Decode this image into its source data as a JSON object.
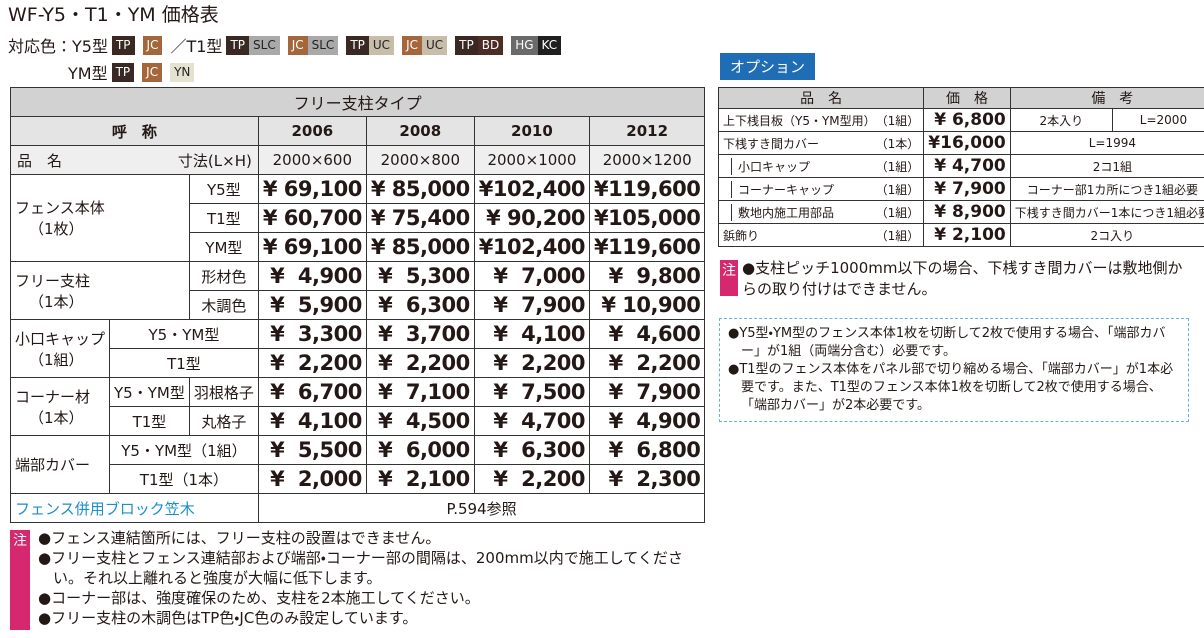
{
  "title": "WF-Y5・T1・YM 価格表",
  "colors": {
    "y5_label": "対応色：Y5型",
    "y5": [
      "TP",
      "JC"
    ],
    "t1_label": "／T1型",
    "t1": [
      [
        "TP",
        "SLC"
      ],
      [
        "JC",
        "SLC"
      ],
      [
        "TP",
        "UC"
      ],
      [
        "JC",
        "UC"
      ],
      [
        "TP",
        "BD"
      ],
      [
        "HG",
        "KC"
      ]
    ],
    "ym_label": "YM型",
    "ym": [
      "TP",
      "JC",
      "YN"
    ]
  },
  "main_table": {
    "header": "フリー支柱タイプ",
    "model_label": "呼　称",
    "models": [
      "2006",
      "2008",
      "2010",
      "2012"
    ],
    "name_label": "品　名",
    "size_label": "寸法(L×H)",
    "sizes": [
      "2000×600",
      "2000×800",
      "2000×1000",
      "2000×1200"
    ],
    "groups": [
      {
        "name": "フェンス本体",
        "unit": "（1枚）",
        "rows": [
          {
            "label": "Y5型",
            "prices": [
              "¥ 69,100",
              "¥ 85,000",
              "¥102,400",
              "¥119,600"
            ]
          },
          {
            "label": "T1型",
            "prices": [
              "¥ 60,700",
              "¥ 75,400",
              "¥ 90,200",
              "¥105,000"
            ]
          },
          {
            "label": "YM型",
            "prices": [
              "¥ 69,100",
              "¥ 85,000",
              "¥102,400",
              "¥119,600"
            ]
          }
        ]
      },
      {
        "name": "フリー支柱",
        "unit": "（1本）",
        "rows": [
          {
            "label": "形材色",
            "prices": [
              "¥  4,900",
              "¥  5,300",
              "¥  7,000",
              "¥  9,800"
            ]
          },
          {
            "label": "木調色",
            "prices": [
              "¥  5,900",
              "¥  6,300",
              "¥  7,900",
              "¥ 10,900"
            ]
          }
        ]
      },
      {
        "name": "小口キャップ",
        "unit": "（1組）",
        "rows": [
          {
            "label": "Y5・YM型",
            "prices": [
              "¥  3,300",
              "¥  3,700",
              "¥  4,100",
              "¥  4,600"
            ]
          },
          {
            "label": "T1型",
            "prices": [
              "¥  2,200",
              "¥  2,200",
              "¥  2,200",
              "¥  2,200"
            ]
          }
        ]
      },
      {
        "name": "コーナー材",
        "unit": "（1本）",
        "rows": [
          {
            "label": "Y5・YM型",
            "sub": "羽根格子",
            "prices": [
              "¥  6,700",
              "¥  7,100",
              "¥  7,500",
              "¥  7,900"
            ]
          },
          {
            "label": "T1型",
            "sub": "丸格子",
            "prices": [
              "¥  4,100",
              "¥  4,500",
              "¥  4,700",
              "¥  4,900"
            ]
          }
        ]
      },
      {
        "name": "端部カバー",
        "rows": [
          {
            "label": "Y5・YM型",
            "qty": "（1組）",
            "prices": [
              "¥  5,500",
              "¥  6,000",
              "¥  6,300",
              "¥  6,800"
            ]
          },
          {
            "label": "T1型",
            "qty": "（1本）",
            "prices": [
              "¥  2,000",
              "¥  2,100",
              "¥  2,200",
              "¥  2,300"
            ]
          }
        ]
      }
    ],
    "footer": {
      "item": "フェンス併用ブロック笠木",
      "ref": "P.594参照"
    }
  },
  "options": {
    "badge": "オプション",
    "headers": [
      "品　名",
      "価　格",
      "備　考"
    ],
    "rows": [
      {
        "name": "上下桟目板（Y5・YM型用）",
        "unit": "（1組）",
        "price": "¥ 6,800",
        "remarks": [
          "2本入り",
          "L=2000"
        ]
      },
      {
        "name": "下桟すき間カバー",
        "unit": "（1本）",
        "price": "¥16,000",
        "remarks": [
          "L=1994"
        ]
      },
      {
        "name": "小口キャップ",
        "unit": "（1組）",
        "price": "¥ 4,700",
        "remarks": [
          "2コ1組"
        ]
      },
      {
        "name": "コーナーキャップ",
        "unit": "（1組）",
        "price": "¥ 7,900",
        "remarks": [
          "コーナー部1カ所につき1組必要"
        ]
      },
      {
        "name": "敷地内施工用部品",
        "unit": "（1組）",
        "price": "¥ 8,900",
        "remarks": [
          "下桟すき間カバー1本につき1組必要"
        ]
      },
      {
        "name": "鋲飾り",
        "unit": "（1組）",
        "price": "¥ 2,100",
        "remarks": [
          "2コ入り"
        ]
      }
    ],
    "note_badge": "注",
    "note": "●支柱ピッチ1000mm以下の場合、下桟すき間カバーは敷地側からの取り付けはできません。",
    "box": [
      "●Y5型・YM型のフェンス本体1枚を切断して2枚で使用する場合、「端部カバー」が1組（両端分含む）必要です。",
      "●T1型のフェンス本体をパネル部で切り縮める場合、「端部カバー」が1本必要です。また、T1型のフェンス本体1枚を切断して2枚で使用する場合、「端部カバー」が2本必要です。"
    ]
  },
  "notes": {
    "badge": "注",
    "items": [
      "●フェンス連結箇所には、フリー支柱の設置はできません。",
      "●フリー支柱とフェンス連結部および端部・コーナー部の間隔は、200mm以内で施工してください。それ以上離れると強度が大幅に低下します。",
      "●コーナー部は、強度確保のため、支柱を2本施工してください。",
      "●フリー支柱の木調色はTP色・JC色のみ設定しています。"
    ]
  }
}
